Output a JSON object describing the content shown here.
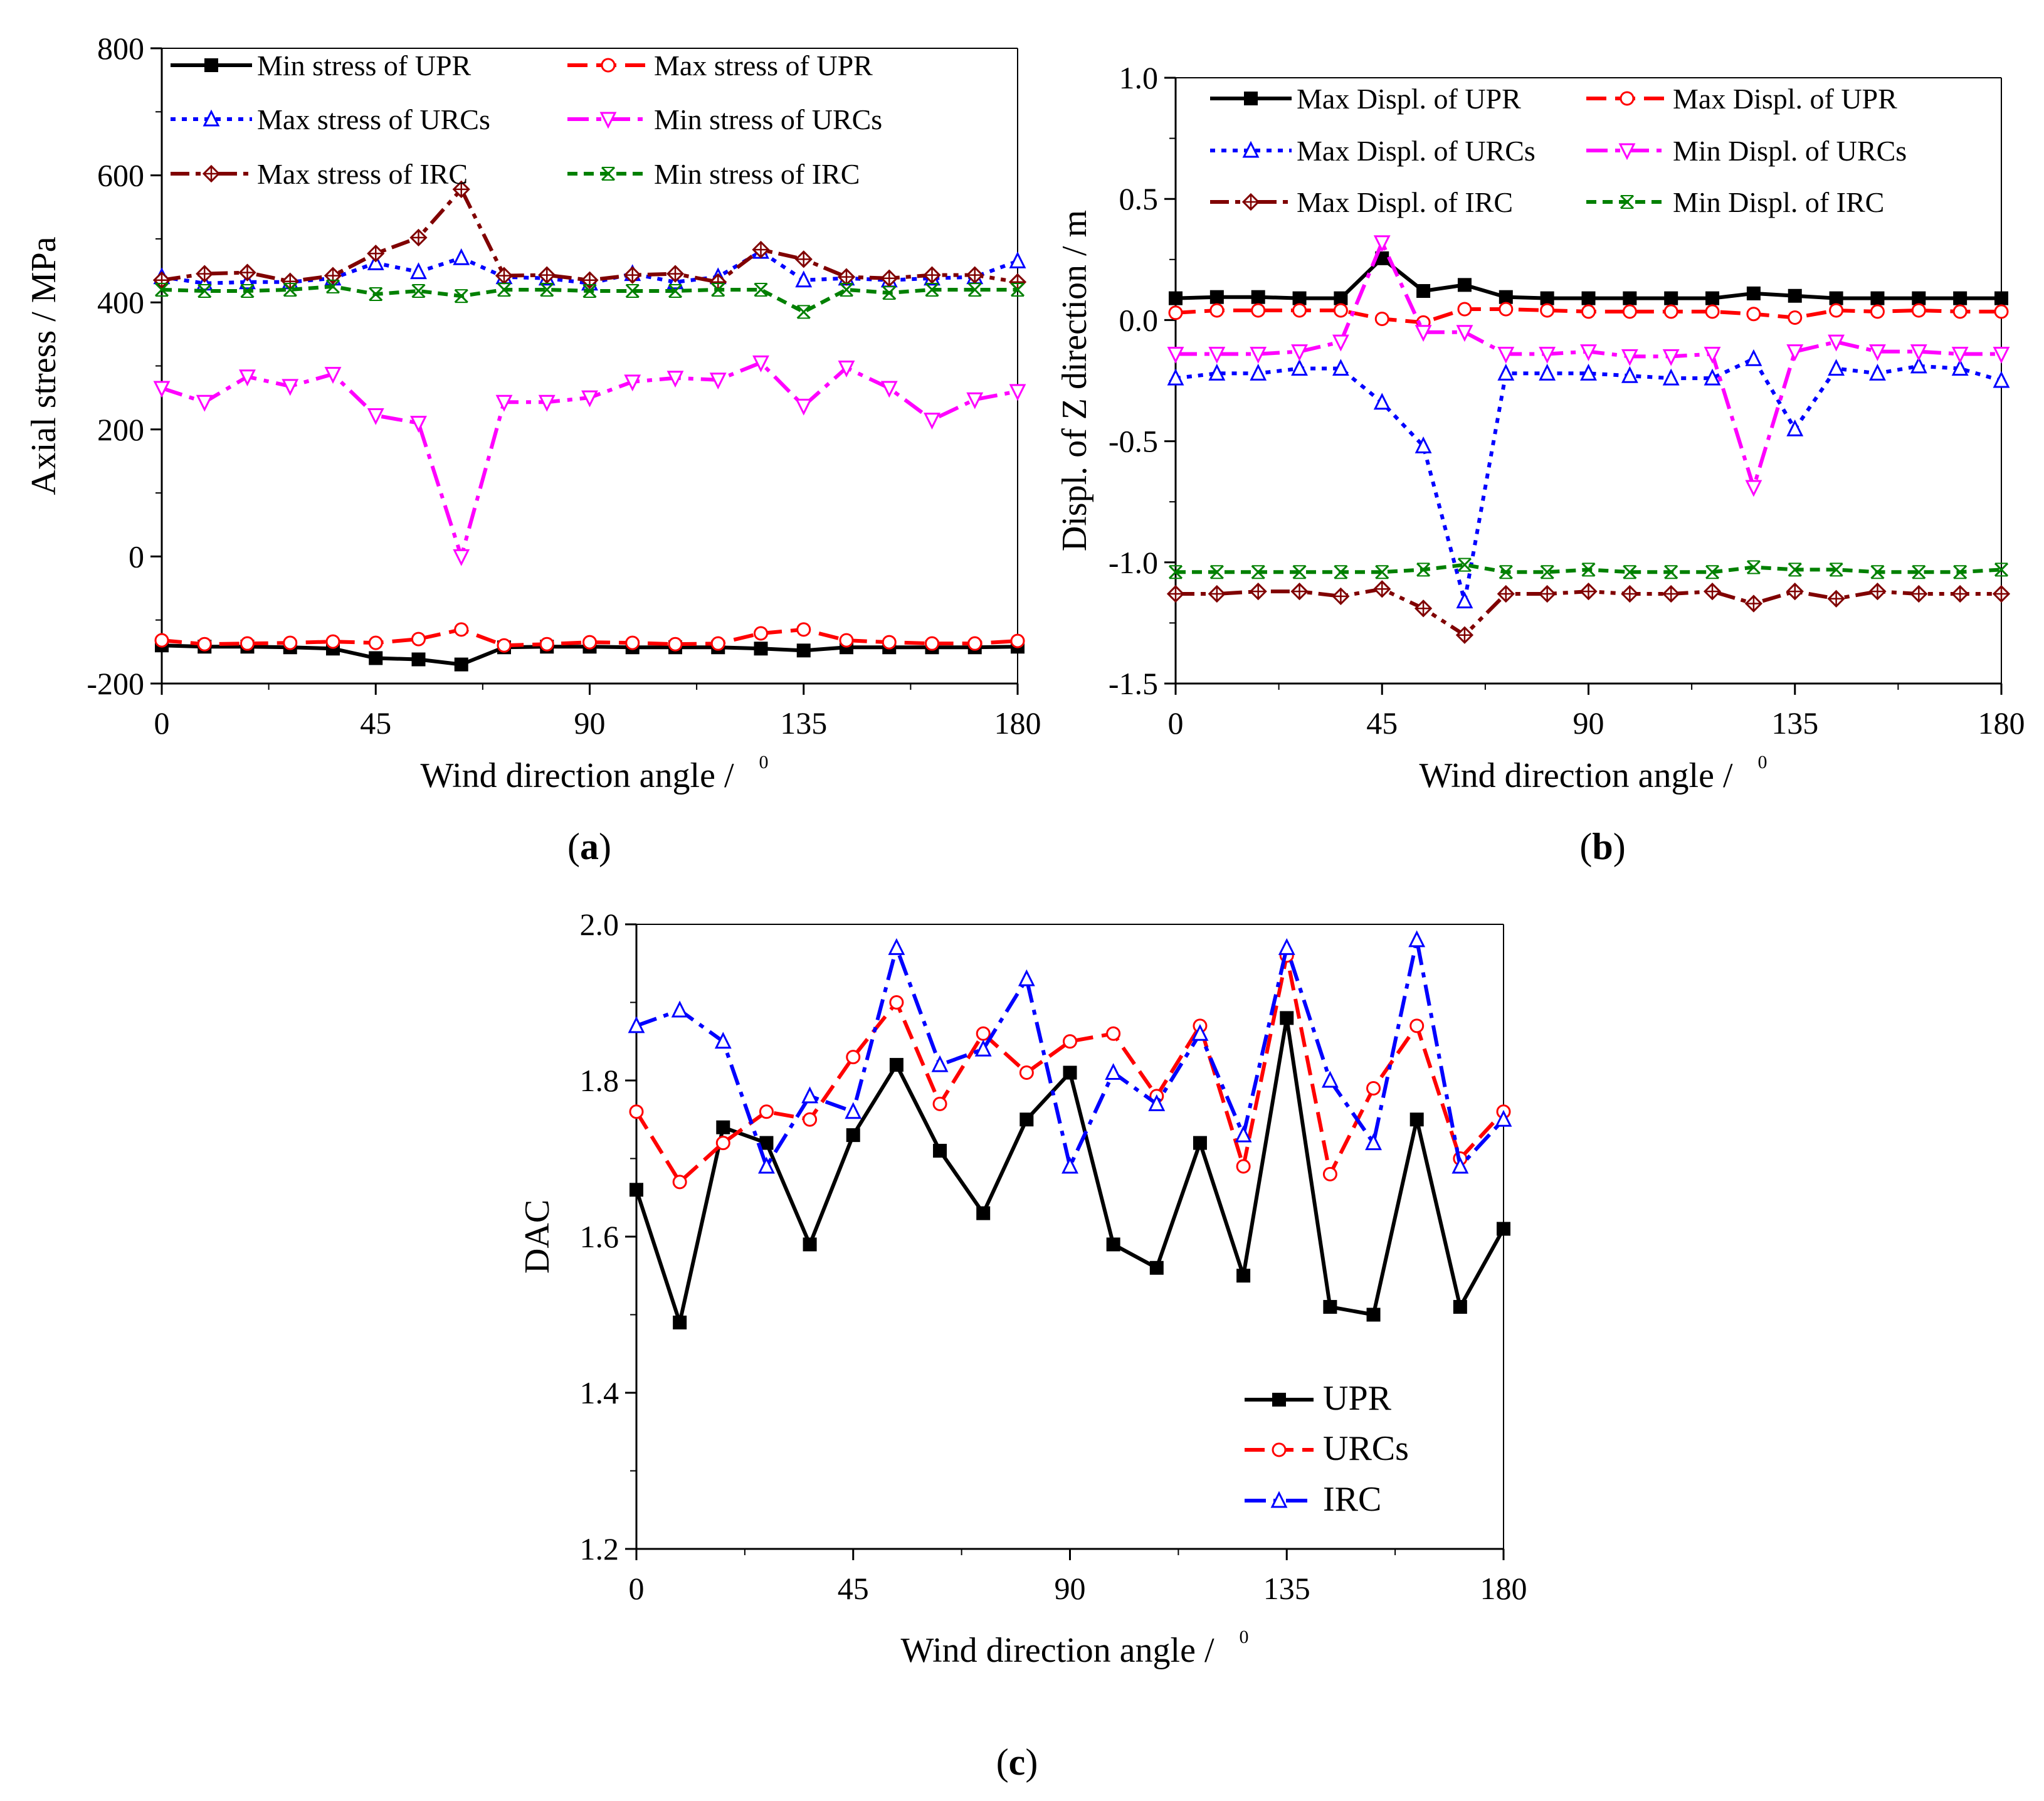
{
  "chart_data": [
    {
      "panel": "a",
      "panel_label": {
        "open": "(",
        "letter": "a",
        "close": ")"
      },
      "type": "line",
      "xlabel": "Wind direction angle /",
      "xlabel_unit": "0",
      "ylabel": "Axial stress / MPa",
      "xlim": [
        0,
        180
      ],
      "ylim": [
        -200,
        800
      ],
      "xticks": [
        0,
        45,
        90,
        135,
        180
      ],
      "yticks": [
        -200,
        0,
        200,
        400,
        600,
        800
      ],
      "x": [
        0,
        9,
        18,
        27,
        36,
        45,
        54,
        63,
        72,
        81,
        90,
        99,
        108,
        117,
        126,
        135,
        144,
        153,
        162,
        171,
        180
      ],
      "legend_position": "top",
      "series": [
        {
          "name": "Min stress of UPR",
          "color": "#000000",
          "marker": "square-filled",
          "dash": "solid",
          "values": [
            -140,
            -142,
            -142,
            -143,
            -145,
            -160,
            -162,
            -170,
            -143,
            -142,
            -142,
            -143,
            -143,
            -143,
            -145,
            -148,
            -143,
            -143,
            -143,
            -143,
            -142
          ]
        },
        {
          "name": "Max stress of UPR",
          "color": "#ff0000",
          "marker": "circle-open",
          "dash": "dash",
          "values": [
            -132,
            -138,
            -137,
            -136,
            -134,
            -136,
            -130,
            -115,
            -140,
            -138,
            -135,
            -136,
            -138,
            -137,
            -121,
            -115,
            -132,
            -135,
            -137,
            -137,
            -133
          ]
        },
        {
          "name": "Max stress of URCs",
          "color": "#0000ff",
          "marker": "triangle-up-open",
          "dash": "dot",
          "values": [
            440,
            430,
            432,
            432,
            438,
            462,
            448,
            470,
            440,
            438,
            430,
            445,
            432,
            440,
            480,
            435,
            438,
            435,
            438,
            440,
            465
          ]
        },
        {
          "name": "Min stress of URCs",
          "color": "#ff00ff",
          "marker": "triangle-down-open",
          "dash": "dashdot",
          "values": [
            265,
            243,
            283,
            268,
            287,
            222,
            210,
            0,
            243,
            243,
            250,
            275,
            281,
            278,
            305,
            237,
            297,
            265,
            215,
            247,
            260
          ]
        },
        {
          "name": "Max stress of IRC",
          "color": "#800000",
          "marker": "diamond-cross",
          "dash": "dashdotdot",
          "values": [
            435,
            445,
            447,
            433,
            442,
            477,
            502,
            578,
            442,
            443,
            435,
            443,
            445,
            432,
            483,
            468,
            440,
            438,
            443,
            443,
            432
          ]
        },
        {
          "name": "Min stress of IRC",
          "color": "#008000",
          "marker": "x-box",
          "dash": "shortdash",
          "values": [
            420,
            418,
            418,
            420,
            425,
            413,
            418,
            410,
            420,
            420,
            418,
            418,
            418,
            420,
            420,
            385,
            420,
            415,
            420,
            420,
            420
          ]
        }
      ]
    },
    {
      "panel": "b",
      "panel_label": {
        "open": "(",
        "letter": "b",
        "close": ")"
      },
      "type": "line",
      "xlabel": "Wind direction angle /",
      "xlabel_unit": "0",
      "ylabel": "Displ. of Z direction / m",
      "xlim": [
        0,
        180
      ],
      "ylim": [
        -1.5,
        1.0
      ],
      "xticks": [
        0,
        45,
        90,
        135,
        180
      ],
      "yticks": [
        -1.5,
        -1.0,
        -0.5,
        0.0,
        0.5,
        1.0
      ],
      "ytick_labels": [
        "-1.5",
        "-1.0",
        "-0.5",
        "0.0",
        "0.5",
        "1.0"
      ],
      "x": [
        0,
        9,
        18,
        27,
        36,
        45,
        54,
        63,
        72,
        81,
        90,
        99,
        108,
        117,
        126,
        135,
        144,
        153,
        162,
        171,
        180
      ],
      "legend_position": "top",
      "series": [
        {
          "name": "Max Displ. of UPR",
          "color": "#000000",
          "marker": "square-filled",
          "dash": "solid",
          "values": [
            0.09,
            0.095,
            0.095,
            0.09,
            0.09,
            0.255,
            0.12,
            0.145,
            0.095,
            0.09,
            0.09,
            0.09,
            0.09,
            0.09,
            0.11,
            0.1,
            0.09,
            0.09,
            0.09,
            0.09,
            0.09
          ]
        },
        {
          "name": "Max Displ. of UPR",
          "color": "#ff0000",
          "marker": "circle-open",
          "dash": "dash",
          "values": [
            0.03,
            0.04,
            0.04,
            0.04,
            0.04,
            0.005,
            -0.01,
            0.045,
            0.045,
            0.04,
            0.035,
            0.035,
            0.035,
            0.035,
            0.025,
            0.01,
            0.04,
            0.035,
            0.04,
            0.035,
            0.035
          ]
        },
        {
          "name": "Max Displ. of URCs",
          "color": "#0000ff",
          "marker": "triangle-up-open",
          "dash": "dot",
          "values": [
            -0.24,
            -0.22,
            -0.22,
            -0.2,
            -0.2,
            -0.34,
            -0.52,
            -1.16,
            -0.22,
            -0.22,
            -0.22,
            -0.23,
            -0.24,
            -0.24,
            -0.16,
            -0.45,
            -0.2,
            -0.22,
            -0.19,
            -0.2,
            -0.25
          ]
        },
        {
          "name": "Min Displ. of URCs",
          "color": "#ff00ff",
          "marker": "triangle-down-open",
          "dash": "dashdot",
          "values": [
            -0.14,
            -0.14,
            -0.14,
            -0.13,
            -0.09,
            0.32,
            -0.05,
            -0.05,
            -0.14,
            -0.14,
            -0.13,
            -0.15,
            -0.15,
            -0.14,
            -0.69,
            -0.13,
            -0.09,
            -0.13,
            -0.13,
            -0.14,
            -0.14
          ]
        },
        {
          "name": "Max Displ. of IRC",
          "color": "#800000",
          "marker": "diamond-cross",
          "dash": "dashdotdot",
          "values": [
            -1.13,
            -1.13,
            -1.12,
            -1.12,
            -1.14,
            -1.11,
            -1.19,
            -1.3,
            -1.13,
            -1.13,
            -1.12,
            -1.13,
            -1.13,
            -1.12,
            -1.17,
            -1.12,
            -1.15,
            -1.12,
            -1.13,
            -1.13,
            -1.13
          ]
        },
        {
          "name": "Min Displ. of IRC",
          "color": "#008000",
          "marker": "x-box",
          "dash": "shortdash",
          "values": [
            -1.04,
            -1.04,
            -1.04,
            -1.04,
            -1.04,
            -1.04,
            -1.03,
            -1.01,
            -1.04,
            -1.04,
            -1.03,
            -1.04,
            -1.04,
            -1.04,
            -1.02,
            -1.03,
            -1.03,
            -1.04,
            -1.04,
            -1.04,
            -1.03
          ]
        }
      ]
    },
    {
      "panel": "c",
      "panel_label": {
        "open": "(",
        "letter": "c",
        "close": ")"
      },
      "type": "line",
      "xlabel": "Wind direction angle /",
      "xlabel_unit": "0",
      "ylabel": "DAC",
      "xlim": [
        0,
        180
      ],
      "ylim": [
        1.2,
        2.0
      ],
      "xticks": [
        0,
        45,
        90,
        135,
        180
      ],
      "yticks": [
        1.2,
        1.4,
        1.6,
        1.8,
        2.0
      ],
      "ytick_labels": [
        "1.2",
        "1.4",
        "1.6",
        "1.8",
        "2.0"
      ],
      "x": [
        0,
        9,
        18,
        27,
        36,
        45,
        54,
        63,
        72,
        81,
        90,
        99,
        108,
        117,
        126,
        135,
        144,
        153,
        162,
        171,
        180
      ],
      "legend_position": "bottom-right",
      "series": [
        {
          "name": "UPR",
          "color": "#000000",
          "marker": "square-filled",
          "dash": "solid",
          "values": [
            1.66,
            1.49,
            1.74,
            1.72,
            1.59,
            1.73,
            1.82,
            1.71,
            1.63,
            1.75,
            1.81,
            1.59,
            1.56,
            1.72,
            1.55,
            1.88,
            1.51,
            1.5,
            1.75,
            1.51,
            1.61
          ]
        },
        {
          "name": "URCs",
          "color": "#ff0000",
          "marker": "circle-open",
          "dash": "dash",
          "values": [
            1.76,
            1.67,
            1.72,
            1.76,
            1.75,
            1.83,
            1.9,
            1.77,
            1.86,
            1.81,
            1.85,
            1.86,
            1.78,
            1.87,
            1.69,
            1.96,
            1.68,
            1.79,
            1.87,
            1.7,
            1.76
          ]
        },
        {
          "name": "IRC",
          "color": "#0000ff",
          "marker": "triangle-up-open",
          "dash": "dashdot",
          "values": [
            1.87,
            1.89,
            1.85,
            1.69,
            1.78,
            1.76,
            1.97,
            1.82,
            1.84,
            1.93,
            1.69,
            1.81,
            1.77,
            1.86,
            1.73,
            1.97,
            1.8,
            1.72,
            1.98,
            1.69,
            1.75
          ]
        }
      ]
    }
  ]
}
